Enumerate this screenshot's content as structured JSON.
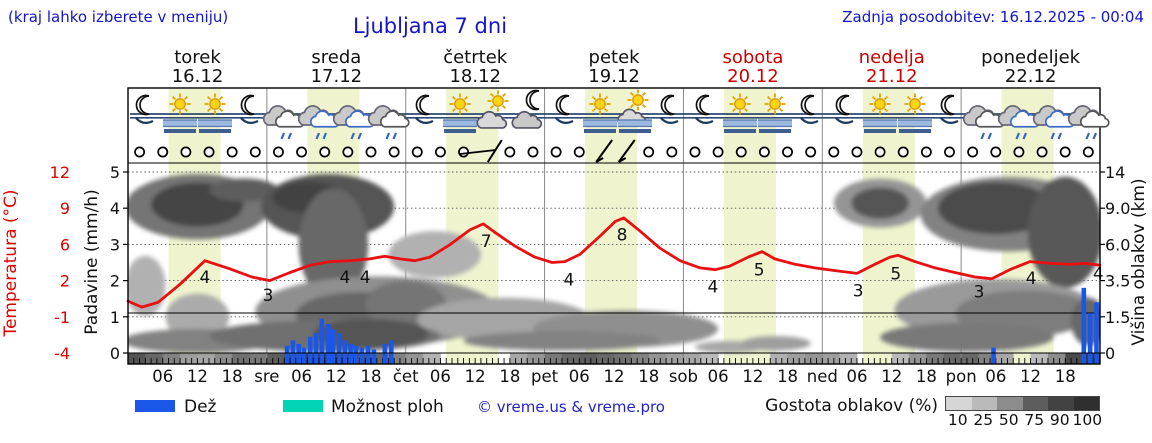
{
  "header": {
    "note_left": "(kraj lahko izberete v meniju)",
    "title": "Ljubljana 7 dni",
    "last_update": "Zadnja posodobitev: 16.12.2025 - 00:04"
  },
  "days": [
    {
      "name": "torek",
      "date": "16.12",
      "weekend": false
    },
    {
      "name": "sreda",
      "date": "17.12",
      "weekend": false
    },
    {
      "name": "četrtek",
      "date": "18.12",
      "weekend": false
    },
    {
      "name": "petek",
      "date": "19.12",
      "weekend": false
    },
    {
      "name": "sobota",
      "date": "20.12",
      "weekend": true
    },
    {
      "name": "nedelja",
      "date": "21.12",
      "weekend": true
    },
    {
      "name": "ponedeljek",
      "date": "22.12",
      "weekend": false
    }
  ],
  "axes": {
    "temp_label": "Temperatura (°C)",
    "temp_ticks": [
      "12",
      "9",
      "6",
      "2",
      "-1",
      "-4"
    ],
    "precip_label": "Padavine (mm/h)",
    "precip_ticks": [
      "5",
      "4",
      "3",
      "2",
      "1",
      "0"
    ],
    "cloud_label": "Višina oblakov (km)",
    "cloud_ticks": [
      "14",
      "9.0",
      "6.0",
      "3.5",
      "1.5",
      "0"
    ],
    "hour_ticks": [
      "06",
      "12",
      "18"
    ],
    "day_abbrevs": [
      "sre",
      "čet",
      "pet",
      "sob",
      "ned",
      "pon"
    ]
  },
  "legend": {
    "rain": "Dež",
    "showers": "Možnost ploh",
    "copyright": "© vreme.us & vreme.pro",
    "cloud_density": "Gostota oblakov (%)",
    "density_ticks": [
      "10",
      "25",
      "50",
      "75",
      "90",
      "100"
    ],
    "rain_color": "#1a56e8",
    "showers_color": "#00d4b4",
    "temp_color": "#e81010",
    "band_color": "#eff4cf"
  },
  "icons": [
    "moon-fog",
    "sun-fog",
    "sun-fog",
    "moon-fog",
    "rain-cloud",
    "rain-cloud-blue",
    "rain-cloud-blue",
    "rain-cloud",
    "moon-fog",
    "sun-fog",
    "sun-cloud",
    "moon-cloud",
    "moon-fog",
    "sun-fog",
    "sun-cloud-fog",
    "moon-fog",
    "moon-fog",
    "sun-fog",
    "sun-fog",
    "moon-fog",
    "moon-fog",
    "sun-fog",
    "sun-fog",
    "moon-fog",
    "rain-cloud",
    "rain-cloud-blue",
    "rain-cloud-blue",
    "rain-cloud"
  ],
  "chart_data": {
    "type": "line",
    "title": "Ljubljana 7 dni",
    "x_axis": {
      "unit": "hours_from_start",
      "range": [
        0,
        168
      ],
      "days": 7,
      "daylight_band_hours": [
        7,
        16
      ]
    },
    "temp_axis_values": [
      12,
      9,
      6,
      2,
      -1,
      -4
    ],
    "precip_axis_values": [
      5,
      4,
      3,
      2,
      1,
      0
    ],
    "cloud_height_axis_km": [
      14,
      9.0,
      6.0,
      3.5,
      1.5,
      0
    ],
    "temperature": {
      "points": [
        [
          0,
          0.3
        ],
        [
          2.4,
          -0.2
        ],
        [
          5.2,
          0.2
        ],
        [
          9,
          1.7
        ],
        [
          13.3,
          4.2
        ],
        [
          17.6,
          3.3
        ],
        [
          21.4,
          2.4
        ],
        [
          24.5,
          2.0
        ],
        [
          28,
          2.9
        ],
        [
          31.5,
          3.7
        ],
        [
          34.9,
          4.1
        ],
        [
          38.4,
          4.2
        ],
        [
          41.8,
          4.4
        ],
        [
          44.4,
          4.7
        ],
        [
          47,
          4.4
        ],
        [
          49.6,
          4.2
        ],
        [
          52.2,
          4.6
        ],
        [
          55.7,
          6.0
        ],
        [
          59.1,
          7.2
        ],
        [
          61.4,
          7.7
        ],
        [
          63.4,
          7.0
        ],
        [
          66.9,
          5.8
        ],
        [
          70.3,
          4.6
        ],
        [
          73.3,
          4.0
        ],
        [
          75.5,
          4.1
        ],
        [
          78.1,
          4.9
        ],
        [
          81.6,
          6.7
        ],
        [
          84.2,
          7.9
        ],
        [
          85.7,
          8.2
        ],
        [
          88.5,
          7.1
        ],
        [
          91.9,
          5.6
        ],
        [
          95.4,
          4.2
        ],
        [
          98.9,
          3.4
        ],
        [
          101.5,
          3.2
        ],
        [
          104,
          3.6
        ],
        [
          107.2,
          4.6
        ],
        [
          109.6,
          5.2
        ],
        [
          111.8,
          4.4
        ],
        [
          115.3,
          3.8
        ],
        [
          118.7,
          3.4
        ],
        [
          122.2,
          3.1
        ],
        [
          126,
          2.8
        ],
        [
          129.1,
          3.8
        ],
        [
          131.7,
          4.6
        ],
        [
          133.1,
          4.8
        ],
        [
          136,
          4.1
        ],
        [
          139.5,
          3.4
        ],
        [
          142.9,
          2.9
        ],
        [
          146.4,
          2.4
        ],
        [
          149.3,
          2.2
        ],
        [
          152.4,
          3.2
        ],
        [
          155.9,
          4.1
        ],
        [
          159.4,
          3.9
        ],
        [
          162.8,
          3.8
        ],
        [
          165.4,
          3.9
        ],
        [
          168,
          3.7
        ]
      ],
      "labels": [
        {
          "text": "4",
          "hour": 13.3,
          "temp": 2.4
        },
        {
          "text": "3",
          "hour": 24.2,
          "temp": 0.8
        },
        {
          "text": "4",
          "hour": 37.5,
          "temp": 2.4
        },
        {
          "text": "4",
          "hour": 41.0,
          "temp": 2.4
        },
        {
          "text": "7",
          "hour": 61.9,
          "temp": 6.3
        },
        {
          "text": "4",
          "hour": 76.2,
          "temp": 2.1
        },
        {
          "text": "8",
          "hour": 85.4,
          "temp": 6.8
        },
        {
          "text": "4",
          "hour": 101.1,
          "temp": 1.5
        },
        {
          "text": "5",
          "hour": 109.1,
          "temp": 3.2
        },
        {
          "text": "3",
          "hour": 126.2,
          "temp": 1.2
        },
        {
          "text": "5",
          "hour": 132.7,
          "temp": 2.8
        },
        {
          "text": "3",
          "hour": 147.1,
          "temp": 1.1
        },
        {
          "text": "4",
          "hour": 156.1,
          "temp": 2.3
        },
        {
          "text": "4",
          "hour": 167.7,
          "temp": 2.8
        }
      ]
    },
    "precipitation_mm_per_h": [
      [
        27.5,
        0.2
      ],
      [
        28.5,
        0.35
      ],
      [
        29.5,
        0.25
      ],
      [
        30.4,
        0.15
      ],
      [
        31.5,
        0.45
      ],
      [
        32.5,
        0.55
      ],
      [
        33.5,
        0.95
      ],
      [
        34.6,
        0.8
      ],
      [
        35.4,
        0.65
      ],
      [
        36.5,
        0.55
      ],
      [
        37.5,
        0.35
      ],
      [
        38.5,
        0.25
      ],
      [
        39.4,
        0.2
      ],
      [
        40.4,
        0.15
      ],
      [
        41.5,
        0.2
      ],
      [
        42.5,
        0.1
      ],
      [
        44.4,
        0.25
      ],
      [
        45.5,
        0.35
      ],
      [
        149.6,
        0.15
      ],
      [
        165.2,
        1.8
      ],
      [
        166.3,
        1.1
      ],
      [
        167.4,
        1.4
      ]
    ],
    "cloud_cover_strip_pct": [
      80,
      70,
      55,
      40,
      35,
      50,
      65,
      60,
      75,
      85,
      95,
      95,
      90,
      80,
      70,
      55,
      45,
      30,
      18,
      10,
      12,
      22,
      35,
      45,
      60,
      70,
      75,
      70,
      65,
      55,
      45,
      40,
      35,
      25,
      18,
      15,
      20,
      30,
      40,
      45,
      40,
      30,
      20,
      15,
      25,
      45,
      60,
      70,
      70,
      55,
      35,
      20,
      25,
      50,
      85,
      95
    ],
    "cloud_layers": [
      {
        "h": 3,
        "km": 3.2,
        "rh": 3.5,
        "rkm": 1.8,
        "pct": 30
      },
      {
        "h": 12,
        "km": 1.5,
        "rh": 5.5,
        "rkm": 1.1,
        "pct": 33
      },
      {
        "h": 12,
        "km": 9.2,
        "rh": 12.5,
        "rkm": 3.4,
        "pct": 62
      },
      {
        "h": 12,
        "km": 9.5,
        "rh": 8,
        "rkm": 2.4,
        "pct": 88
      },
      {
        "h": 20,
        "km": 11.5,
        "rh": 6,
        "rkm": 1.6,
        "pct": 75
      },
      {
        "h": 34.5,
        "km": 9.2,
        "rh": 11.5,
        "rkm": 3.4,
        "pct": 80
      },
      {
        "h": 31,
        "km": 10.5,
        "rh": 6,
        "rkm": 2,
        "pct": 90
      },
      {
        "h": 35.5,
        "km": 6,
        "rh": 6,
        "rkm": 4.2,
        "pct": 70
      },
      {
        "h": 53,
        "km": 5.3,
        "rh": 8,
        "rkm": 1.7,
        "pct": 30
      },
      {
        "h": 43,
        "km": 1.8,
        "rh": 21,
        "rkm": 1.7,
        "pct": 48
      },
      {
        "h": 40,
        "km": 1.6,
        "rh": 11,
        "rkm": 1.1,
        "pct": 70
      },
      {
        "h": 48,
        "km": 2.2,
        "rh": 7,
        "rkm": 1.2,
        "pct": 62
      },
      {
        "h": 65,
        "km": 1.4,
        "rh": 15,
        "rkm": 1.0,
        "pct": 36
      },
      {
        "h": 86,
        "km": 1.0,
        "rh": 16,
        "rkm": 0.8,
        "pct": 48
      },
      {
        "h": 130,
        "km": 9.7,
        "rh": 8,
        "rkm": 2.7,
        "pct": 45
      },
      {
        "h": 130,
        "km": 9.7,
        "rh": 5,
        "rkm": 1.8,
        "pct": 80
      },
      {
        "h": 152,
        "km": 8.5,
        "rh": 15,
        "rkm": 3.6,
        "pct": 55
      },
      {
        "h": 150,
        "km": 9,
        "rh": 10,
        "rkm": 2.7,
        "pct": 85
      },
      {
        "h": 162,
        "km": 7,
        "rh": 6.5,
        "rkm": 4.6,
        "pct": 78
      },
      {
        "h": 150,
        "km": 1.9,
        "rh": 17.5,
        "rkm": 1.5,
        "pct": 42
      },
      {
        "h": 155,
        "km": 1.7,
        "rh": 12,
        "rkm": 1.1,
        "pct": 58
      },
      {
        "h": 12,
        "km": 0.5,
        "rh": 13,
        "rkm": 0.5,
        "pct": 55
      },
      {
        "h": 34,
        "km": 0.7,
        "rh": 20,
        "rkm": 0.65,
        "pct": 65
      },
      {
        "h": 42,
        "km": 0.8,
        "rh": 10,
        "rkm": 0.6,
        "pct": 80
      },
      {
        "h": 75,
        "km": 0.5,
        "rh": 17,
        "rkm": 0.4,
        "pct": 55
      },
      {
        "h": 104,
        "km": 0.25,
        "rh": 6,
        "rkm": 0.25,
        "pct": 35
      },
      {
        "h": 112,
        "km": 0.4,
        "rh": 6,
        "rkm": 0.3,
        "pct": 40
      },
      {
        "h": 145,
        "km": 0.65,
        "rh": 15,
        "rkm": 0.6,
        "pct": 60
      },
      {
        "h": 166,
        "km": 1.3,
        "rh": 3,
        "rkm": 1.1,
        "pct": 70
      }
    ],
    "wind_barbs": [
      {
        "hour": 61.5,
        "type": "shaft-flag"
      },
      {
        "hour": 82.3,
        "type": "flag"
      },
      {
        "hour": 86.2,
        "type": "flag"
      }
    ],
    "skip_circles": [
      15,
      20,
      21
    ]
  }
}
